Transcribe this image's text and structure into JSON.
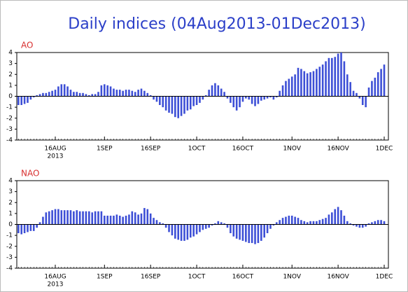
{
  "title": "Daily indices (04Aug2013-01Dec2013)",
  "chart_data": [
    {
      "type": "bar",
      "title": "AO",
      "color": "#3d4fd6",
      "ylim": [
        -4,
        4
      ],
      "yticks": [
        -4,
        -3,
        -2,
        -1,
        0,
        1,
        2,
        3,
        4
      ],
      "year_label": "2013",
      "categories": [
        null,
        null,
        null,
        null,
        null,
        null,
        null,
        null,
        null,
        null,
        null,
        null,
        "16AUG",
        null,
        null,
        null,
        null,
        null,
        null,
        null,
        null,
        null,
        null,
        null,
        null,
        null,
        null,
        null,
        "1SEP",
        null,
        null,
        null,
        null,
        null,
        null,
        null,
        null,
        null,
        null,
        null,
        null,
        null,
        null,
        "16SEP",
        null,
        null,
        null,
        null,
        null,
        null,
        null,
        null,
        null,
        null,
        null,
        null,
        null,
        null,
        "1OCT",
        null,
        null,
        null,
        null,
        null,
        null,
        null,
        null,
        null,
        null,
        null,
        null,
        null,
        null,
        "16OCT",
        null,
        null,
        null,
        null,
        null,
        null,
        null,
        null,
        null,
        null,
        null,
        null,
        null,
        null,
        null,
        "1NOV",
        null,
        null,
        null,
        null,
        null,
        null,
        null,
        null,
        null,
        null,
        null,
        null,
        null,
        null,
        "16NOV",
        null,
        null,
        null,
        null,
        null,
        null,
        null,
        null,
        null,
        null,
        null,
        null,
        null,
        null,
        "1DEC"
      ],
      "values": [
        -0.8,
        -0.8,
        -0.7,
        -0.6,
        -0.3,
        -0.1,
        0.1,
        0.2,
        0.3,
        0.3,
        0.4,
        0.5,
        0.6,
        0.9,
        1.1,
        1.1,
        0.9,
        0.6,
        0.4,
        0.4,
        0.3,
        0.3,
        0.2,
        0.1,
        0.2,
        0.2,
        0.4,
        1.0,
        1.1,
        1.0,
        0.9,
        0.7,
        0.6,
        0.6,
        0.5,
        0.6,
        0.6,
        0.5,
        0.4,
        0.6,
        0.7,
        0.5,
        0.3,
        0.1,
        -0.3,
        -0.5,
        -0.8,
        -1.0,
        -1.3,
        -1.5,
        -1.6,
        -1.9,
        -2.0,
        -1.8,
        -1.6,
        -1.3,
        -1.2,
        -0.9,
        -0.8,
        -0.6,
        -0.3,
        0.1,
        0.6,
        1.0,
        1.2,
        1.0,
        0.7,
        0.4,
        -0.2,
        -0.6,
        -1.0,
        -1.3,
        -1.0,
        -0.5,
        -0.2,
        -0.3,
        -0.7,
        -0.9,
        -0.7,
        -0.4,
        -0.3,
        -0.2,
        -0.1,
        -0.3,
        -0.1,
        0.5,
        1.0,
        1.4,
        1.6,
        1.8,
        2.0,
        2.6,
        2.5,
        2.3,
        2.1,
        2.2,
        2.3,
        2.5,
        2.7,
        2.9,
        3.2,
        3.5,
        3.5,
        3.6,
        3.9,
        4.0,
        3.2,
        2.0,
        1.3,
        0.5,
        0.3,
        -0.2,
        -0.8,
        -1.0,
        0.8,
        1.4,
        1.7,
        2.2,
        2.5,
        2.9
      ]
    },
    {
      "type": "bar",
      "title": "NAO",
      "color": "#3d4fd6",
      "ylim": [
        -4,
        4
      ],
      "yticks": [
        -4,
        -3,
        -2,
        -1,
        0,
        1,
        2,
        3,
        4
      ],
      "year_label": "2013",
      "categories": [
        null,
        null,
        null,
        null,
        null,
        null,
        null,
        null,
        null,
        null,
        null,
        null,
        "16AUG",
        null,
        null,
        null,
        null,
        null,
        null,
        null,
        null,
        null,
        null,
        null,
        null,
        null,
        null,
        null,
        "1SEP",
        null,
        null,
        null,
        null,
        null,
        null,
        null,
        null,
        null,
        null,
        null,
        null,
        null,
        null,
        "16SEP",
        null,
        null,
        null,
        null,
        null,
        null,
        null,
        null,
        null,
        null,
        null,
        null,
        null,
        null,
        "1OCT",
        null,
        null,
        null,
        null,
        null,
        null,
        null,
        null,
        null,
        null,
        null,
        null,
        null,
        null,
        "16OCT",
        null,
        null,
        null,
        null,
        null,
        null,
        null,
        null,
        null,
        null,
        null,
        null,
        null,
        null,
        null,
        "1NOV",
        null,
        null,
        null,
        null,
        null,
        null,
        null,
        null,
        null,
        null,
        null,
        null,
        null,
        null,
        "16NOV",
        null,
        null,
        null,
        null,
        null,
        null,
        null,
        null,
        null,
        null,
        null,
        null,
        null,
        null,
        "1DEC"
      ],
      "values": [
        -0.8,
        -0.9,
        -0.8,
        -0.7,
        -0.6,
        -0.6,
        -0.3,
        0.2,
        0.7,
        1.1,
        1.2,
        1.3,
        1.4,
        1.4,
        1.3,
        1.3,
        1.3,
        1.3,
        1.2,
        1.3,
        1.2,
        1.2,
        1.2,
        1.2,
        1.1,
        1.2,
        1.2,
        1.2,
        0.8,
        0.8,
        0.8,
        0.8,
        0.9,
        0.8,
        0.7,
        0.8,
        0.9,
        1.2,
        1.1,
        0.9,
        1.0,
        1.5,
        1.4,
        1.0,
        0.6,
        0.4,
        0.2,
        0.1,
        -0.3,
        -0.7,
        -1.0,
        -1.3,
        -1.4,
        -1.5,
        -1.5,
        -1.4,
        -1.2,
        -1.1,
        -0.9,
        -0.7,
        -0.5,
        -0.4,
        -0.3,
        -0.1,
        0.1,
        0.3,
        0.2,
        0.1,
        -0.3,
        -0.8,
        -1.1,
        -1.3,
        -1.4,
        -1.5,
        -1.6,
        -1.7,
        -1.7,
        -1.8,
        -1.7,
        -1.5,
        -1.2,
        -0.8,
        -0.4,
        -0.1,
        0.2,
        0.4,
        0.6,
        0.7,
        0.8,
        0.8,
        0.7,
        0.6,
        0.4,
        0.3,
        0.2,
        0.3,
        0.3,
        0.3,
        0.4,
        0.5,
        0.6,
        0.9,
        1.1,
        1.4,
        1.6,
        1.3,
        0.8,
        0.3,
        0.1,
        -0.1,
        -0.2,
        -0.3,
        -0.3,
        -0.2,
        0.1,
        0.2,
        0.3,
        0.4,
        0.4,
        0.3
      ]
    }
  ]
}
